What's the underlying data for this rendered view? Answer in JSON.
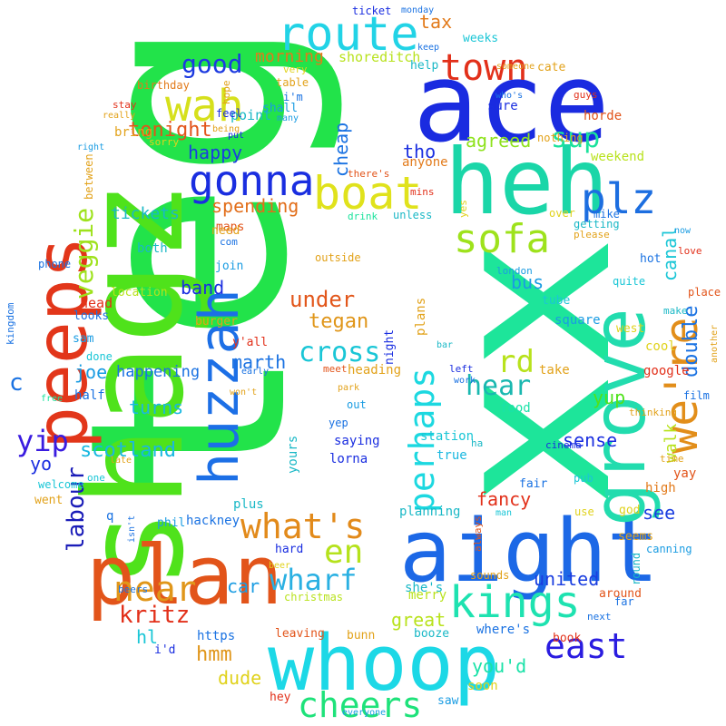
{
  "title": "",
  "words": [
    {
      "text": "tegs",
      "color": "#22e34a"
    },
    {
      "text": "xx",
      "color": "#1de59a"
    },
    {
      "text": "shagz",
      "color": "#4fe21b"
    },
    {
      "text": "ace",
      "color": "#1a2be0"
    },
    {
      "text": "heh",
      "color": "#1ad6a8"
    },
    {
      "text": "aight",
      "color": "#1c68e6"
    },
    {
      "text": "plan",
      "color": "#e2541a"
    },
    {
      "text": "whoop",
      "color": "#1cd8e6"
    },
    {
      "text": "grove",
      "color": "#22dcae"
    },
    {
      "text": "peeps",
      "color": "#e2361a"
    },
    {
      "text": "huzzah",
      "color": "#1c6fe6"
    },
    {
      "text": "route",
      "color": "#22d3e6"
    },
    {
      "text": "boat",
      "color": "#e0e21c"
    },
    {
      "text": "wah",
      "color": "#d6e01c"
    },
    {
      "text": "gonna",
      "color": "#1a2ee0"
    },
    {
      "text": "we're",
      "color": "#e28e1a"
    },
    {
      "text": "plz",
      "color": "#1c6ee0"
    },
    {
      "text": "sofa",
      "color": "#9ee21c"
    },
    {
      "text": "town",
      "color": "#e2301a"
    },
    {
      "text": "kings",
      "color": "#1ee2b0"
    },
    {
      "text": "perhaps",
      "color": "#1cd8e0"
    },
    {
      "text": "what's",
      "color": "#e28a1a"
    },
    {
      "text": "cheers",
      "color": "#1ee27a"
    },
    {
      "text": "east",
      "color": "#2a1ce0"
    },
    {
      "text": "near",
      "color": "#e0961a"
    },
    {
      "text": "en",
      "color": "#b5e21c"
    },
    {
      "text": "wharf",
      "color": "#2ab0e2"
    },
    {
      "text": "cross",
      "color": "#1ac6d6"
    },
    {
      "text": "hear",
      "color": "#1ab8b0"
    },
    {
      "text": "rd",
      "color": "#b8e21c"
    },
    {
      "text": "yip",
      "color": "#3a1ce0"
    },
    {
      "text": "veggie",
      "color": "#9ee21c"
    },
    {
      "text": "sup",
      "color": "#1ae29c"
    },
    {
      "text": "good",
      "color": "#1c3ae0"
    },
    {
      "text": "labour",
      "color": "#1a1cb8"
    },
    {
      "text": "scotland",
      "color": "#1ab8e0"
    },
    {
      "text": "tegan",
      "color": "#e0961a"
    },
    {
      "text": "under",
      "color": "#e2561a"
    },
    {
      "text": "kritz",
      "color": "#e2301a"
    },
    {
      "text": "united",
      "color": "#1a3ee0"
    },
    {
      "text": "double",
      "color": "#1a72e2"
    },
    {
      "text": "walk",
      "color": "#b8e21c"
    },
    {
      "text": "canal",
      "color": "#1ac6d6"
    },
    {
      "text": "tax",
      "color": "#e27a1a"
    },
    {
      "text": "tonight",
      "color": "#e2541a"
    },
    {
      "text": "cheap",
      "color": "#1a72e2"
    },
    {
      "text": "spending",
      "color": "#e26e1a"
    },
    {
      "text": "tickets",
      "color": "#1ab8c6"
    },
    {
      "text": "happy",
      "color": "#1a3ee0"
    },
    {
      "text": "agreed",
      "color": "#8ee21c"
    },
    {
      "text": "tho",
      "color": "#1a2ee0"
    },
    {
      "text": "band",
      "color": "#1a2ee0"
    },
    {
      "text": "marth",
      "color": "#1a72e2"
    },
    {
      "text": "joe",
      "color": "#1a9ce2"
    },
    {
      "text": "turns",
      "color": "#1ab8e0"
    },
    {
      "text": "happening",
      "color": "#1a72e2"
    },
    {
      "text": "fancy",
      "color": "#e2301a"
    },
    {
      "text": "see",
      "color": "#1a3ee0"
    },
    {
      "text": "yup",
      "color": "#4fe21b"
    },
    {
      "text": "sense",
      "color": "#1a2ee0"
    },
    {
      "text": "bus",
      "color": "#1a9ce2"
    },
    {
      "text": "hmm",
      "color": "#e0961a"
    },
    {
      "text": "dude",
      "color": "#e0d21c"
    },
    {
      "text": "great",
      "color": "#b8e21c"
    },
    {
      "text": "you'd",
      "color": "#1ae2a8"
    },
    {
      "text": "car",
      "color": "#1a9ce2"
    },
    {
      "text": "hl",
      "color": "#1ac6d6"
    },
    {
      "text": "morning",
      "color": "#e27a1a"
    },
    {
      "text": "yo",
      "color": "#1a2ee0"
    },
    {
      "text": "c",
      "color": "#1a72e2"
    }
  ],
  "small_words": [
    {
      "text": "point",
      "color": "#1ab8c6"
    },
    {
      "text": "shoreditch",
      "color": "#b8e21c"
    },
    {
      "text": "shall",
      "color": "#1a9ce2"
    },
    {
      "text": "i'm",
      "color": "#1a72e2"
    },
    {
      "text": "maps",
      "color": "#e2541a"
    },
    {
      "text": "birthday",
      "color": "#e27a1a"
    },
    {
      "text": "bring",
      "color": "#e2a21a"
    },
    {
      "text": "feel",
      "color": "#1a2ee0"
    },
    {
      "text": "help",
      "color": "#1ab8c6"
    },
    {
      "text": "weeks",
      "color": "#1ac6d6"
    },
    {
      "text": "sure",
      "color": "#1a2ee0"
    },
    {
      "text": "horde",
      "color": "#e2541a"
    },
    {
      "text": "weekend",
      "color": "#b8e21c"
    },
    {
      "text": "anyone",
      "color": "#e27a1a"
    },
    {
      "text": "mins",
      "color": "#e2301a"
    },
    {
      "text": "drink",
      "color": "#1ae29c"
    },
    {
      "text": "unless",
      "color": "#1ab8c6"
    },
    {
      "text": "getting",
      "color": "#1ab8c6"
    },
    {
      "text": "please",
      "color": "#e2a21a"
    },
    {
      "text": "mike",
      "color": "#1a72e2"
    },
    {
      "text": "london",
      "color": "#1a9ce2"
    },
    {
      "text": "tube",
      "color": "#1ac6d6"
    },
    {
      "text": "hot",
      "color": "#1a72e2"
    },
    {
      "text": "quite",
      "color": "#1ac6d6"
    },
    {
      "text": "square",
      "color": "#1a9ce2"
    },
    {
      "text": "west",
      "color": "#e0d21c"
    },
    {
      "text": "cool",
      "color": "#e0d21c"
    },
    {
      "text": "google",
      "color": "#e2301a"
    },
    {
      "text": "take",
      "color": "#e2a21a"
    },
    {
      "text": "food",
      "color": "#1ae2a8"
    },
    {
      "text": "station",
      "color": "#1ac6d6"
    },
    {
      "text": "true",
      "color": "#1ab8e0"
    },
    {
      "text": "fair",
      "color": "#1a72e2"
    },
    {
      "text": "yay",
      "color": "#e2541a"
    },
    {
      "text": "high",
      "color": "#e27a1a"
    },
    {
      "text": "god",
      "color": "#e0d21c"
    },
    {
      "text": "seems",
      "color": "#e2a21a"
    },
    {
      "text": "around",
      "color": "#e2541a"
    },
    {
      "text": "merry",
      "color": "#b8e21c"
    },
    {
      "text": "sounds",
      "color": "#e2a21a"
    },
    {
      "text": "where's",
      "color": "#1a72e2"
    },
    {
      "text": "booze",
      "color": "#1ab8c6"
    },
    {
      "text": "book",
      "color": "#e2301a"
    },
    {
      "text": "soon",
      "color": "#e0d21c"
    },
    {
      "text": "saw",
      "color": "#1a9ce2"
    },
    {
      "text": "hey",
      "color": "#e2301a"
    },
    {
      "text": "leaving",
      "color": "#e2541a"
    },
    {
      "text": "bunn",
      "color": "#e2a21a"
    },
    {
      "text": "https",
      "color": "#1a72e2"
    },
    {
      "text": "i'd",
      "color": "#1a2ee0"
    },
    {
      "text": "christmas",
      "color": "#b8e21c"
    },
    {
      "text": "beer",
      "color": "#e0d21c"
    },
    {
      "text": "hard",
      "color": "#1a2ee0"
    },
    {
      "text": "plus",
      "color": "#1ab8c6"
    },
    {
      "text": "hackney",
      "color": "#1a72e2"
    },
    {
      "text": "phil",
      "color": "#1a9ce2"
    },
    {
      "text": "went",
      "color": "#e2a21a"
    },
    {
      "text": "welcome",
      "color": "#1ac6d6"
    },
    {
      "text": "half",
      "color": "#1a72e2"
    },
    {
      "text": "free",
      "color": "#1ae29c"
    },
    {
      "text": "looks",
      "color": "#1a72e2"
    },
    {
      "text": "head",
      "color": "#e2301a"
    },
    {
      "text": "kingdom",
      "color": "#1a72e2"
    },
    {
      "text": "sam",
      "color": "#1a9ce2"
    },
    {
      "text": "done",
      "color": "#1ac6d6"
    },
    {
      "text": "location",
      "color": "#b8e21c"
    },
    {
      "text": "burger",
      "color": "#e2a21a"
    },
    {
      "text": "y'all",
      "color": "#e2301a"
    },
    {
      "text": "heading",
      "color": "#e2a21a"
    },
    {
      "text": "saying",
      "color": "#1a2ee0"
    },
    {
      "text": "lorna",
      "color": "#1a2ee0"
    },
    {
      "text": "yours",
      "color": "#1ab8c6"
    },
    {
      "text": "planning",
      "color": "#1ab8c6"
    },
    {
      "text": "she's",
      "color": "#1ab8c6"
    },
    {
      "text": "night",
      "color": "#1a2ee0"
    },
    {
      "text": "plans",
      "color": "#e2a21a"
    },
    {
      "text": "outside",
      "color": "#e2a21a"
    },
    {
      "text": "need",
      "color": "#e2a21a"
    },
    {
      "text": "join",
      "color": "#1a9ce2"
    },
    {
      "text": "both",
      "color": "#1ab8c6"
    },
    {
      "text": "phone",
      "color": "#1a72e2"
    },
    {
      "text": "between",
      "color": "#e2a21a"
    },
    {
      "text": "sorry",
      "color": "#e0d21c"
    },
    {
      "text": "table",
      "color": "#e2a21a"
    },
    {
      "text": "very",
      "color": "#e0d21c"
    },
    {
      "text": "hope",
      "color": "#e2a21a"
    },
    {
      "text": "ticket",
      "color": "#1a2ee0"
    },
    {
      "text": "monday",
      "color": "#1a72e2"
    },
    {
      "text": "keep",
      "color": "#1a72e2"
    },
    {
      "text": "someone",
      "color": "#e2a21a"
    },
    {
      "text": "cate",
      "color": "#e2a21a"
    },
    {
      "text": "nothing",
      "color": "#e2a21a"
    },
    {
      "text": "guys",
      "color": "#e2301a"
    },
    {
      "text": "love",
      "color": "#e2301a"
    },
    {
      "text": "place",
      "color": "#e2541a"
    },
    {
      "text": "make",
      "color": "#1ab8c6"
    },
    {
      "text": "film",
      "color": "#1a72e2"
    },
    {
      "text": "time",
      "color": "#e2a21a"
    },
    {
      "text": "cinema",
      "color": "#1a2ee0"
    },
    {
      "text": "pub",
      "color": "#1ac6d6"
    },
    {
      "text": "use",
      "color": "#e0d21c"
    },
    {
      "text": "canning",
      "color": "#1a9ce2"
    },
    {
      "text": "far",
      "color": "#1a72e2"
    },
    {
      "text": "next",
      "color": "#1a72e2"
    },
    {
      "text": "round",
      "color": "#1ab8c6"
    },
    {
      "text": "thinking",
      "color": "#e2a21a"
    },
    {
      "text": "park",
      "color": "#e2a21a"
    },
    {
      "text": "meet",
      "color": "#e2541a"
    },
    {
      "text": "early",
      "color": "#1a72e2"
    },
    {
      "text": "won't",
      "color": "#e2a21a"
    },
    {
      "text": "work",
      "color": "#1a72e2"
    },
    {
      "text": "left",
      "color": "#1a2ee0"
    },
    {
      "text": "bar",
      "color": "#1ab8c6"
    },
    {
      "text": "out",
      "color": "#1a9ce2"
    },
    {
      "text": "yep",
      "color": "#1a72e2"
    },
    {
      "text": "ha",
      "color": "#1ab8c6"
    },
    {
      "text": "man",
      "color": "#1ac6d6"
    },
    {
      "text": "always",
      "color": "#e2541a"
    },
    {
      "text": "beers",
      "color": "#1a72e2"
    },
    {
      "text": "isn't",
      "color": "#1a72e2"
    },
    {
      "text": "q",
      "color": "#1a72e2"
    },
    {
      "text": "late",
      "color": "#e2a21a"
    },
    {
      "text": "one",
      "color": "#1ac6d6"
    },
    {
      "text": "many",
      "color": "#1a9ce2"
    },
    {
      "text": "being",
      "color": "#e2a21a"
    },
    {
      "text": "put",
      "color": "#1a2ee0"
    },
    {
      "text": "really",
      "color": "#e2a21a"
    },
    {
      "text": "stay",
      "color": "#e2301a"
    },
    {
      "text": "right",
      "color": "#1a9ce2"
    },
    {
      "text": "there's",
      "color": "#e2541a"
    },
    {
      "text": "who's",
      "color": "#1a72e2"
    },
    {
      "text": "now",
      "color": "#1a9ce2"
    },
    {
      "text": "com",
      "color": "#1a72e2"
    },
    {
      "text": "yes",
      "color": "#e0d21c"
    },
    {
      "text": "over",
      "color": "#e0d21c"
    },
    {
      "text": "everyone",
      "color": "#1a9ce2"
    },
    {
      "text": "another",
      "color": "#e2a21a"
    }
  ]
}
